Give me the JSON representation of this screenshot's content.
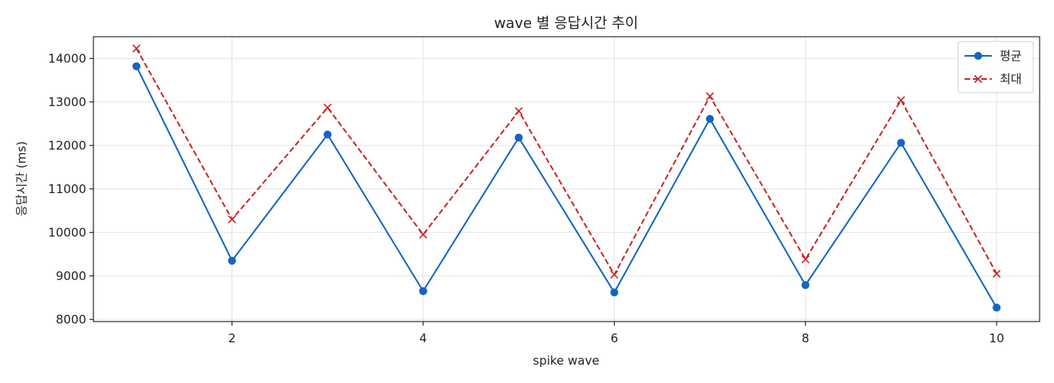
{
  "chart_data": {
    "type": "line",
    "title": "wave 별 응답시간 추이",
    "xlabel": "spike wave",
    "ylabel": "응답시간 (ms)",
    "x": [
      1,
      2,
      3,
      4,
      5,
      6,
      7,
      8,
      9,
      10
    ],
    "xlim": [
      0.55,
      10.45
    ],
    "ylim": [
      7950,
      14500
    ],
    "xticks": [
      2,
      4,
      6,
      8,
      10
    ],
    "yticks": [
      8000,
      9000,
      10000,
      11000,
      12000,
      13000,
      14000
    ],
    "grid": true,
    "legend_position": "top-right",
    "series": [
      {
        "name": "평균",
        "color": "#1565c0",
        "line_style": "solid",
        "marker": "circle",
        "values": [
          13820,
          9350,
          12250,
          8650,
          12180,
          8620,
          12610,
          8790,
          12060,
          8270
        ]
      },
      {
        "name": "최대",
        "color": "#c62828",
        "line_style": "dashed",
        "marker": "x",
        "values": [
          14230,
          10300,
          12870,
          9950,
          12790,
          9030,
          13130,
          9380,
          13040,
          9050
        ]
      }
    ]
  }
}
